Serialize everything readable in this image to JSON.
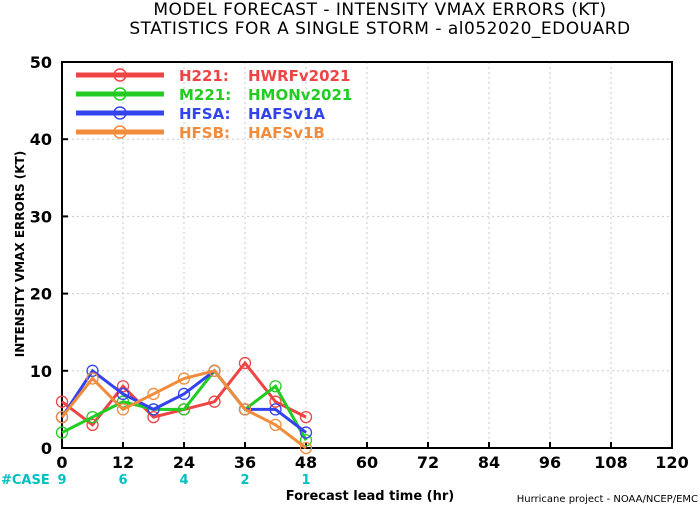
{
  "title": {
    "line1": "MODEL FORECAST - INTENSITY VMAX ERRORS (KT)",
    "line2": "STATISTICS FOR A SINGLE STORM - al052020_EDOUARD"
  },
  "credit": "Hurricane project - NOAA/NCEP/EMC",
  "case_label": "#CASE",
  "case_color": "#00c0c0",
  "chart_data": {
    "type": "line",
    "xlabel": "Forecast lead time (hr)",
    "ylabel": "INTENSITY VMAX ERRORS (KT)",
    "xlim": [
      0,
      120
    ],
    "ylim": [
      0,
      50
    ],
    "xticks": [
      0,
      12,
      24,
      36,
      48,
      60,
      72,
      84,
      96,
      108,
      120
    ],
    "yticks": [
      0,
      10,
      20,
      30,
      40,
      50
    ],
    "grid": true,
    "legend_position": "top-left",
    "cases": [
      {
        "x": 0,
        "n": "9"
      },
      {
        "x": 12,
        "n": "6"
      },
      {
        "x": 24,
        "n": "4"
      },
      {
        "x": 36,
        "n": "2"
      },
      {
        "x": 48,
        "n": "1"
      }
    ],
    "series": [
      {
        "name": "H221:",
        "desc": "HWRFv2021",
        "color": "#ee4444",
        "x": [
          0,
          6,
          12,
          18,
          24,
          30,
          36,
          42,
          48
        ],
        "values": [
          6,
          3,
          8,
          4,
          5,
          6,
          11,
          6,
          4
        ]
      },
      {
        "name": "M221:",
        "desc": "HMONv2021",
        "color": "#22cc22",
        "x": [
          0,
          6,
          12,
          18,
          24,
          30,
          36,
          42,
          48
        ],
        "values": [
          2,
          4,
          6,
          5,
          5,
          10,
          5,
          8,
          1
        ]
      },
      {
        "name": "HFSA:",
        "desc": "HAFSv1A",
        "color": "#3344ee",
        "x": [
          0,
          6,
          12,
          18,
          24,
          30,
          36,
          42,
          48
        ],
        "values": [
          4,
          10,
          7,
          5,
          7,
          10,
          5,
          5,
          2
        ]
      },
      {
        "name": "HFSB:",
        "desc": "HAFSv1B",
        "color": "#f08c3c",
        "x": [
          0,
          6,
          12,
          18,
          24,
          30,
          36,
          42,
          48
        ],
        "values": [
          4,
          9,
          5,
          7,
          9,
          10,
          5,
          3,
          0
        ]
      }
    ]
  }
}
